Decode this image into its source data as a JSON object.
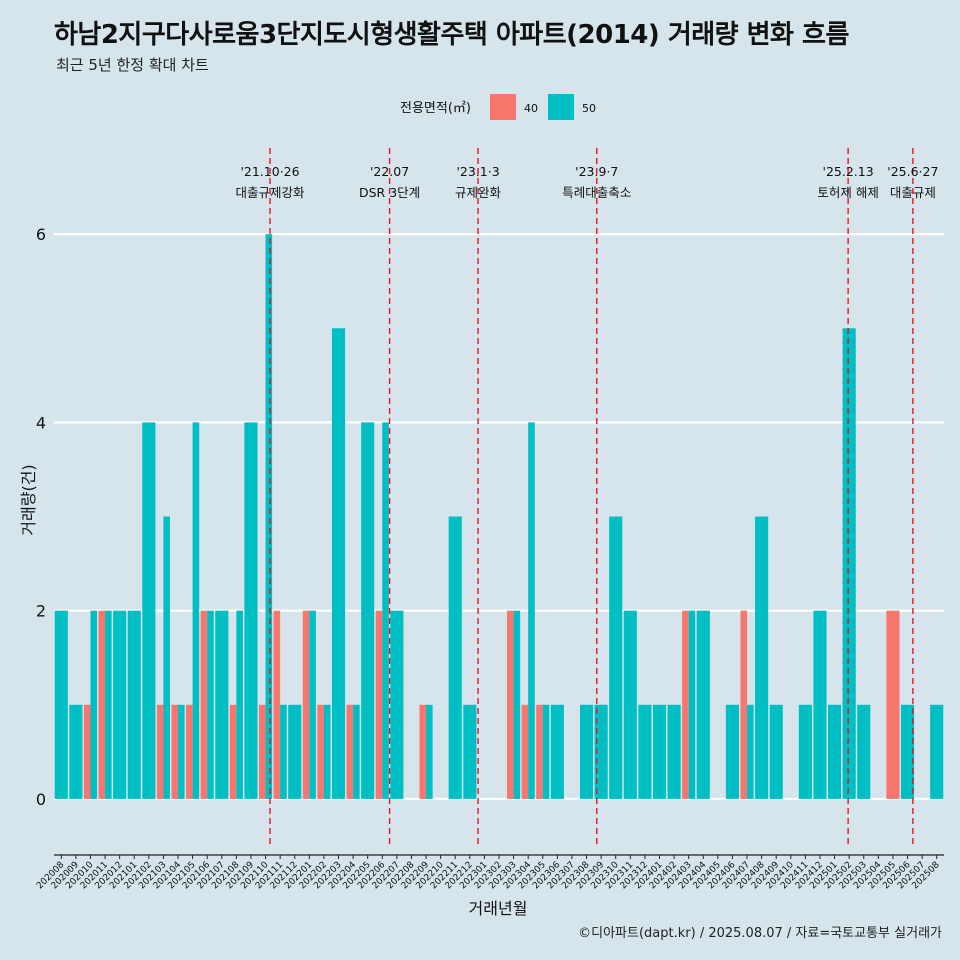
{
  "title": "하남2지구다사로움3단지도시형생활주택 아파트(2014) 거래량 변화 흐름",
  "subtitle": "최근 5년 한정 확대 차트",
  "caption": "©디아파트(dapt.kr) / 2025.08.07 / 자료=국토교통부 실거래가",
  "colors": {
    "s40": "#f8766d",
    "s50": "#00bfc4",
    "event_line": "#e8141e",
    "grid": "#ffffff",
    "background": "#d6e4ec"
  },
  "chart_data": {
    "type": "bar",
    "xlabel": "거래년월",
    "ylabel": "거래량(건)",
    "ylim": [
      -0.5,
      7.0
    ],
    "yticks": [
      0,
      2,
      4,
      6
    ],
    "grid": true,
    "legend": {
      "title": "전용면적(㎡)",
      "position": "top",
      "items": [
        "40",
        "50"
      ]
    },
    "categories": [
      "202008",
      "202009",
      "202010",
      "202011",
      "202012",
      "202101",
      "202102",
      "202103",
      "202104",
      "202105",
      "202106",
      "202107",
      "202108",
      "202109",
      "202110",
      "202111",
      "202112",
      "202201",
      "202202",
      "202203",
      "202204",
      "202205",
      "202206",
      "202207",
      "202208",
      "202209",
      "202210",
      "202211",
      "202212",
      "202301",
      "202302",
      "202303",
      "202304",
      "202305",
      "202306",
      "202307",
      "202308",
      "202309",
      "202310",
      "202311",
      "202312",
      "202401",
      "202402",
      "202403",
      "202404",
      "202405",
      "202406",
      "202407",
      "202408",
      "202409",
      "202410",
      "202411",
      "202412",
      "202501",
      "202502",
      "202503",
      "202504",
      "202505",
      "202506",
      "202507",
      "202508"
    ],
    "series": [
      {
        "name": "40",
        "values": [
          0,
          0,
          1,
          2,
          0,
          0,
          0,
          1,
          1,
          1,
          2,
          0,
          1,
          0,
          1,
          2,
          0,
          2,
          1,
          0,
          1,
          0,
          2,
          0,
          0,
          1,
          0,
          0,
          0,
          0,
          0,
          2,
          1,
          1,
          0,
          0,
          0,
          0,
          0,
          0,
          0,
          0,
          0,
          2,
          0,
          0,
          0,
          2,
          0,
          0,
          0,
          0,
          0,
          0,
          0,
          0,
          0,
          2,
          0,
          0,
          0
        ]
      },
      {
        "name": "50",
        "values": [
          2,
          1,
          2,
          2,
          2,
          2,
          4,
          3,
          1,
          4,
          2,
          2,
          2,
          4,
          6,
          1,
          1,
          2,
          1,
          5,
          1,
          4,
          4,
          2,
          0,
          1,
          0,
          3,
          1,
          0,
          0,
          2,
          4,
          1,
          1,
          0,
          1,
          1,
          3,
          2,
          1,
          1,
          1,
          2,
          2,
          0,
          1,
          1,
          3,
          1,
          0,
          1,
          2,
          1,
          5,
          1,
          0,
          0,
          1,
          0,
          1
        ]
      }
    ],
    "events": [
      {
        "date": "2021-10-26",
        "label1": "'21.10·26",
        "label2": "대출규제강화"
      },
      {
        "date": "2022-07-01",
        "label1": "'22.07",
        "label2": "DSR 3단계"
      },
      {
        "date": "2023-01-03",
        "label1": "'23.1·3",
        "label2": "규제완화"
      },
      {
        "date": "2023-09-07",
        "label1": "'23.9·7",
        "label2": "특례대출축소"
      },
      {
        "date": "2025-02-13",
        "label1": "'25.2.13",
        "label2": "토허제 해제"
      },
      {
        "date": "2025-06-27",
        "label1": "'25.6·27",
        "label2": "대출규제"
      }
    ]
  }
}
